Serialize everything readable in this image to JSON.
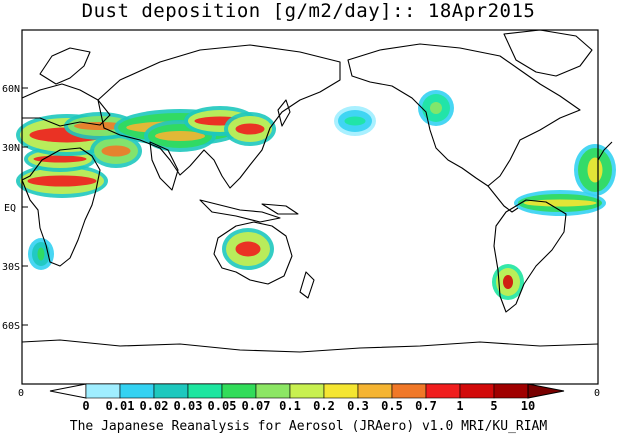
{
  "title": "Dust deposition [g/m2/day]:: 18Apr2015",
  "footer": "The Japanese Reanalysis for Aerosol (JRAero) v1.0 MRI/KU_RIAM",
  "lat_labels": [
    "60N",
    "30N",
    "EQ",
    "30S",
    "60S"
  ],
  "axis_end_labels": [
    "0",
    "0"
  ],
  "colorbar": {
    "labels": [
      "0",
      "0.01",
      "0.02",
      "0.03",
      "0.05",
      "0.07",
      "0.1",
      "0.2",
      "0.3",
      "0.5",
      "0.7",
      "1",
      "5",
      "10"
    ],
    "colors": [
      "#ffffff",
      "#a0eeff",
      "#34d2f2",
      "#1ec8be",
      "#1ee6a0",
      "#32dc5a",
      "#8ce664",
      "#c8f050",
      "#f5e632",
      "#f5b432",
      "#f07828",
      "#f01e1e",
      "#d20a0a",
      "#a00000",
      "#780000"
    ]
  },
  "dust_regions": [
    {
      "name": "sahara-west",
      "level": 11
    },
    {
      "name": "arabia",
      "level": 10
    },
    {
      "name": "central-asia",
      "level": 9
    },
    {
      "name": "east-asia",
      "level": 11
    },
    {
      "name": "north-pacific",
      "level": 4
    },
    {
      "name": "australia",
      "level": 11
    },
    {
      "name": "south-america",
      "level": 12
    },
    {
      "name": "caribbean",
      "level": 8
    },
    {
      "name": "south-africa",
      "level": 5
    },
    {
      "name": "north-america",
      "level": 6
    }
  ]
}
